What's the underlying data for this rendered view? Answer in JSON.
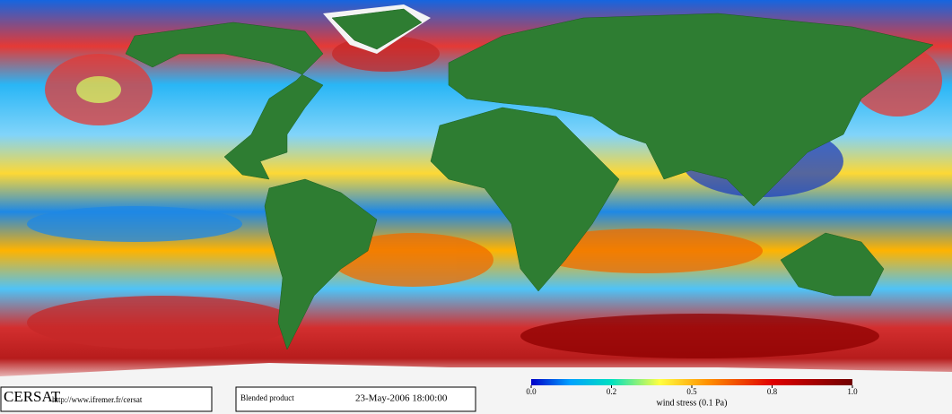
{
  "footer": {
    "logo": "CERSAT",
    "url": "http://www.ifremer.fr/cersat",
    "product": "Blended product",
    "datetime": "23-May-2006 18:00:00"
  },
  "colorbar": {
    "label": "wind stress (0.1 Pa)",
    "ticks": [
      {
        "value": 0,
        "label": "0.0"
      },
      0.2,
      0.5,
      0.8,
      {
        "value": 1,
        "label": "1.0"
      }
    ]
  }
}
